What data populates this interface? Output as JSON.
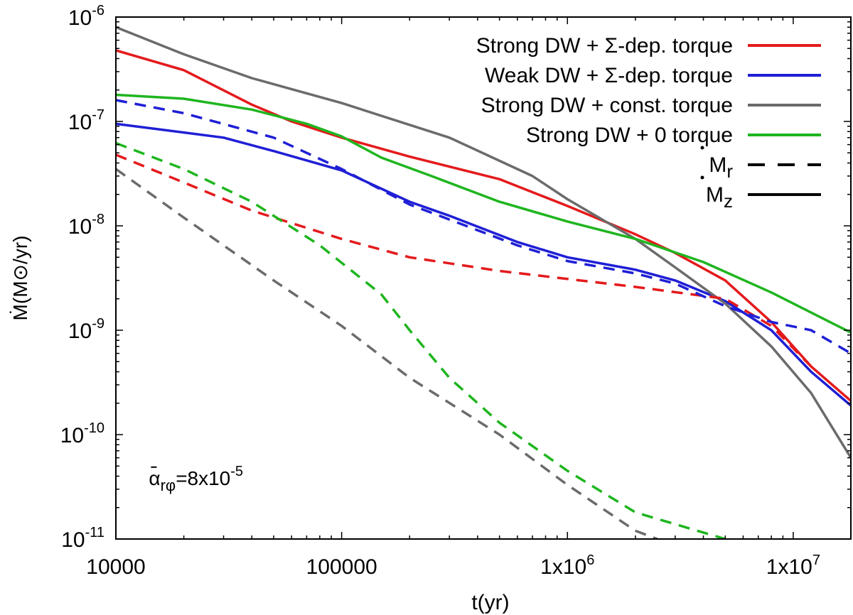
{
  "chart_data": {
    "type": "line",
    "xscale": "log",
    "yscale": "log",
    "xlim": [
      10000,
      18000000
    ],
    "ylim": [
      1e-11,
      1e-06
    ],
    "xlabel": "t(yr)",
    "ylabel": "Ṁ(M⊙/yr)",
    "x_ticks": [
      {
        "value": 10000,
        "label": "10000"
      },
      {
        "value": 100000,
        "label": "100000"
      },
      {
        "value": 1000000,
        "label": "1x10",
        "exp": "6"
      },
      {
        "value": 10000000,
        "label": "1x10",
        "exp": "7"
      }
    ],
    "y_ticks": [
      {
        "value": 1e-06,
        "label": "10",
        "exp": "-6"
      },
      {
        "value": 1e-07,
        "label": "10",
        "exp": "-7"
      },
      {
        "value": 1e-08,
        "label": "10",
        "exp": "-8"
      },
      {
        "value": 1e-09,
        "label": "10",
        "exp": "-9"
      },
      {
        "value": 1e-10,
        "label": "10",
        "exp": "-10"
      },
      {
        "value": 1e-11,
        "label": "10",
        "exp": "-11"
      }
    ],
    "annotation": {
      "base": "α",
      "sub": "rφ",
      "rest": "=8x10",
      "exp": "-5",
      "x": 14000,
      "y": 3.3e-11
    },
    "legend_position": "top-right",
    "legend": [
      {
        "label": "Strong DW + Σ-dep. torque",
        "color": "#e41a1c",
        "style": "solid"
      },
      {
        "label": "Weak DW + Σ-dep. torque",
        "color": "#1f1fd6",
        "style": "solid"
      },
      {
        "label": "Strong DW + const. torque",
        "color": "#6b6b6b",
        "style": "solid"
      },
      {
        "label": "Strong DW + 0 torque",
        "color": "#1fb51f",
        "style": "solid"
      },
      {
        "label": "M",
        "sub": "r",
        "dot": true,
        "color": "#000000",
        "style": "dashed"
      },
      {
        "label": "M",
        "sub": "z",
        "dot": true,
        "color": "#000000",
        "style": "solid"
      }
    ],
    "series": [
      {
        "name": "Strong DW + Σ-dep. torque (Ṁz)",
        "color": "#e41a1c",
        "style": "solid",
        "points": [
          [
            10000,
            4.8e-07
          ],
          [
            20000,
            3.1e-07
          ],
          [
            40000,
            1.45e-07
          ],
          [
            60000,
            1e-07
          ],
          [
            100000,
            7e-08
          ],
          [
            200000,
            4.6e-08
          ],
          [
            500000,
            2.8e-08
          ],
          [
            1000000,
            1.55e-08
          ],
          [
            2000000,
            8.3e-09
          ],
          [
            3000000,
            5.5e-09
          ],
          [
            5000000,
            3e-09
          ],
          [
            8000000,
            1.2e-09
          ],
          [
            12000000,
            4.5e-10
          ],
          [
            18000000,
            2.1e-10
          ]
        ]
      },
      {
        "name": "Weak DW + Σ-dep. torque (Ṁz)",
        "color": "#1f1fd6",
        "style": "solid",
        "points": [
          [
            10000,
            9.5e-08
          ],
          [
            30000,
            7e-08
          ],
          [
            50000,
            5.2e-08
          ],
          [
            100000,
            3.4e-08
          ],
          [
            200000,
            1.7e-08
          ],
          [
            300000,
            1.25e-08
          ],
          [
            600000,
            7e-09
          ],
          [
            1000000,
            5e-09
          ],
          [
            2000000,
            3.8e-09
          ],
          [
            3000000,
            3e-09
          ],
          [
            5000000,
            1.9e-09
          ],
          [
            8000000,
            1e-09
          ],
          [
            12000000,
            4e-10
          ],
          [
            18000000,
            1.9e-10
          ]
        ]
      },
      {
        "name": "Strong DW + const. torque (Ṁz)",
        "color": "#6b6b6b",
        "style": "solid",
        "points": [
          [
            10000,
            8e-07
          ],
          [
            20000,
            4.4e-07
          ],
          [
            40000,
            2.6e-07
          ],
          [
            100000,
            1.5e-07
          ],
          [
            300000,
            7e-08
          ],
          [
            700000,
            3e-08
          ],
          [
            1000000,
            1.8e-08
          ],
          [
            2000000,
            7.5e-09
          ],
          [
            3000000,
            4e-09
          ],
          [
            5000000,
            1.8e-09
          ],
          [
            8000000,
            7e-10
          ],
          [
            12000000,
            2.5e-10
          ],
          [
            18000000,
            6e-11
          ]
        ]
      },
      {
        "name": "Strong DW + 0 torque (Ṁz)",
        "color": "#1fb51f",
        "style": "solid",
        "points": [
          [
            10000,
            1.8e-07
          ],
          [
            20000,
            1.65e-07
          ],
          [
            40000,
            1.3e-07
          ],
          [
            70000,
            9.5e-08
          ],
          [
            100000,
            7.2e-08
          ],
          [
            150000,
            4.5e-08
          ],
          [
            250000,
            3e-08
          ],
          [
            500000,
            1.7e-08
          ],
          [
            1000000,
            1.1e-08
          ],
          [
            2000000,
            7.5e-09
          ],
          [
            4000000,
            4.5e-09
          ],
          [
            8000000,
            2.3e-09
          ],
          [
            18000000,
            9.5e-10
          ]
        ]
      },
      {
        "name": "Strong DW + Σ-dep. torque (Ṁr)",
        "color": "#e41a1c",
        "style": "dashed",
        "points": [
          [
            10000,
            4.8e-08
          ],
          [
            20000,
            2.6e-08
          ],
          [
            40000,
            1.4e-08
          ],
          [
            100000,
            7.5e-09
          ],
          [
            200000,
            5e-09
          ],
          [
            500000,
            3.7e-09
          ],
          [
            1000000,
            3.1e-09
          ],
          [
            2000000,
            2.6e-09
          ],
          [
            5000000,
            2e-09
          ],
          [
            8000000,
            1.1e-09
          ],
          [
            12000000,
            4.5e-10
          ]
        ]
      },
      {
        "name": "Weak DW + Σ-dep. torque (Ṁr)",
        "color": "#1f1fd6",
        "style": "dashed",
        "points": [
          [
            10000,
            1.6e-07
          ],
          [
            20000,
            1.2e-07
          ],
          [
            50000,
            7e-08
          ],
          [
            100000,
            3.5e-08
          ],
          [
            200000,
            1.6e-08
          ],
          [
            300000,
            1.15e-08
          ],
          [
            600000,
            6.5e-09
          ],
          [
            1000000,
            4.6e-09
          ],
          [
            2000000,
            3.5e-09
          ],
          [
            3000000,
            2.8e-09
          ],
          [
            5000000,
            1.7e-09
          ],
          [
            8000000,
            1.2e-09
          ],
          [
            12000000,
            1e-09
          ],
          [
            18000000,
            6e-10
          ]
        ]
      },
      {
        "name": "Strong DW + const. torque (Ṁr)",
        "color": "#6b6b6b",
        "style": "dashed",
        "points": [
          [
            10000,
            3.5e-08
          ],
          [
            20000,
            1.2e-08
          ],
          [
            50000,
            3e-09
          ],
          [
            100000,
            1.1e-09
          ],
          [
            200000,
            3.5e-10
          ],
          [
            500000,
            1e-10
          ],
          [
            1000000,
            3.3e-11
          ],
          [
            2000000,
            1.2e-11
          ],
          [
            2500000,
            1e-11
          ]
        ]
      },
      {
        "name": "Strong DW + 0 torque (Ṁr)",
        "color": "#1fb51f",
        "style": "dashed",
        "points": [
          [
            10000,
            6.2e-08
          ],
          [
            20000,
            3.5e-08
          ],
          [
            40000,
            1.7e-08
          ],
          [
            80000,
            6.5e-09
          ],
          [
            150000,
            2.2e-09
          ],
          [
            200000,
            1e-09
          ],
          [
            300000,
            3.5e-10
          ],
          [
            500000,
            1.3e-10
          ],
          [
            1000000,
            4.5e-11
          ],
          [
            2000000,
            1.8e-11
          ],
          [
            5000000,
            1e-11
          ]
        ]
      }
    ]
  }
}
